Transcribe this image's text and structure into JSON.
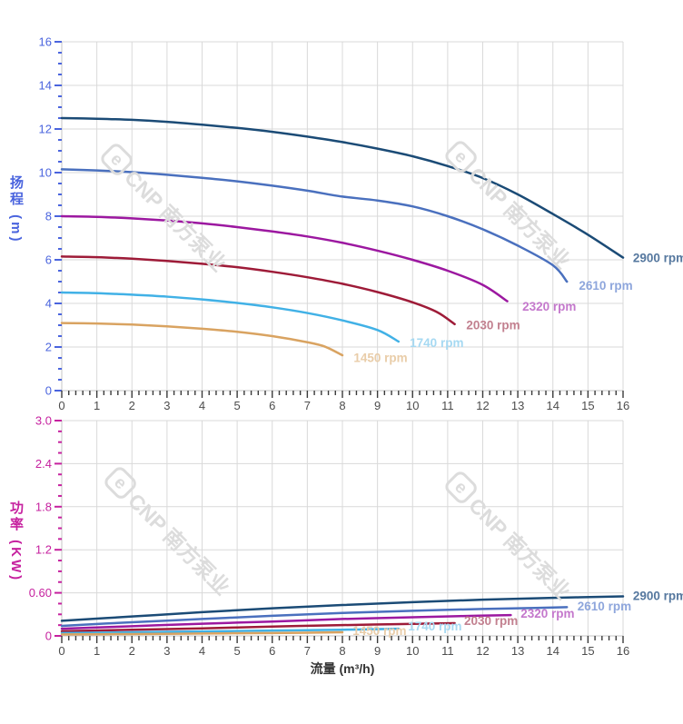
{
  "watermark": {
    "logo_letter": "e",
    "text": "CNP 南方泵业"
  },
  "chart_data": [
    {
      "type": "line",
      "title": "",
      "xlabel": "",
      "ylabel": "扬程 (m)",
      "xlim": [
        0,
        16
      ],
      "ylim": [
        0,
        16
      ],
      "x_major_step": 1,
      "x_minor_step": 0.2,
      "y_major_step": 2,
      "y_minor_step": 0.5,
      "grid": true,
      "axis_color": "#4a64de",
      "x_tick_labels": [
        "0",
        "1",
        "2",
        "3",
        "4",
        "5",
        "6",
        "7",
        "8",
        "9",
        "10",
        "11",
        "12",
        "13",
        "14",
        "15",
        "16"
      ],
      "y_tick_labels": [
        "0",
        "2",
        "4",
        "6",
        "8",
        "10",
        "12",
        "14",
        "16"
      ],
      "series": [
        {
          "name": "2900 rpm",
          "color": "#1b4b76",
          "label_color": "#56789f",
          "label_anchor": [
            16.28,
            6.08
          ],
          "points": [
            [
              0,
              12.5
            ],
            [
              1,
              12.47
            ],
            [
              2,
              12.42
            ],
            [
              3,
              12.33
            ],
            [
              4,
              12.2
            ],
            [
              5,
              12.05
            ],
            [
              6,
              11.87
            ],
            [
              7,
              11.65
            ],
            [
              8,
              11.4
            ],
            [
              9,
              11.1
            ],
            [
              10,
              10.75
            ],
            [
              11,
              10.3
            ],
            [
              12,
              9.75
            ],
            [
              13,
              9.0
            ],
            [
              14,
              8.1
            ],
            [
              15,
              7.15
            ],
            [
              16,
              6.1
            ]
          ]
        },
        {
          "name": "2610 rpm",
          "color": "#4a70be",
          "label_color": "#8ea6dc",
          "label_anchor": [
            14.74,
            4.81
          ],
          "points": [
            [
              0,
              10.15
            ],
            [
              1,
              10.1
            ],
            [
              2,
              10.02
            ],
            [
              3,
              9.9
            ],
            [
              4,
              9.76
            ],
            [
              5,
              9.6
            ],
            [
              6,
              9.4
            ],
            [
              7,
              9.17
            ],
            [
              8,
              8.9
            ],
            [
              9,
              8.72
            ],
            [
              10,
              8.45
            ],
            [
              11,
              8.0
            ],
            [
              12,
              7.4
            ],
            [
              13,
              6.65
            ],
            [
              14,
              5.75
            ],
            [
              14.4,
              5.0
            ]
          ]
        },
        {
          "name": "2320 rpm",
          "color": "#9c18a0",
          "label_color": "#c478cc",
          "label_anchor": [
            13.13,
            3.85
          ],
          "points": [
            [
              0,
              8.0
            ],
            [
              1,
              7.97
            ],
            [
              2,
              7.9
            ],
            [
              3,
              7.8
            ],
            [
              4,
              7.67
            ],
            [
              5,
              7.5
            ],
            [
              6,
              7.3
            ],
            [
              7,
              7.07
            ],
            [
              8,
              6.78
            ],
            [
              9,
              6.42
            ],
            [
              10,
              6.0
            ],
            [
              11,
              5.5
            ],
            [
              12,
              4.85
            ],
            [
              12.7,
              4.1
            ]
          ]
        },
        {
          "name": "2030 rpm",
          "color": "#9e1b38",
          "label_color": "#c2808f",
          "label_anchor": [
            11.53,
            3.0
          ],
          "points": [
            [
              0,
              6.15
            ],
            [
              1,
              6.12
            ],
            [
              2,
              6.05
            ],
            [
              3,
              5.95
            ],
            [
              4,
              5.82
            ],
            [
              5,
              5.66
            ],
            [
              6,
              5.45
            ],
            [
              7,
              5.2
            ],
            [
              8,
              4.9
            ],
            [
              9,
              4.52
            ],
            [
              10,
              4.05
            ],
            [
              10.7,
              3.6
            ],
            [
              11.2,
              3.05
            ]
          ]
        },
        {
          "name": "1740 rpm",
          "color": "#41b1e6",
          "label_color": "#a6d9f2",
          "label_anchor": [
            9.92,
            2.19
          ],
          "points": [
            [
              0,
              4.5
            ],
            [
              1,
              4.47
            ],
            [
              2,
              4.4
            ],
            [
              3,
              4.31
            ],
            [
              4,
              4.18
            ],
            [
              5,
              4.02
            ],
            [
              6,
              3.82
            ],
            [
              7,
              3.56
            ],
            [
              8,
              3.22
            ],
            [
              9,
              2.78
            ],
            [
              9.6,
              2.25
            ]
          ]
        },
        {
          "name": "1450 rpm",
          "color": "#d9a361",
          "label_color": "#e9cda9",
          "label_anchor": [
            8.32,
            1.5
          ],
          "points": [
            [
              0,
              3.1
            ],
            [
              1,
              3.08
            ],
            [
              2,
              3.03
            ],
            [
              3,
              2.95
            ],
            [
              4,
              2.84
            ],
            [
              5,
              2.7
            ],
            [
              6,
              2.5
            ],
            [
              7,
              2.22
            ],
            [
              7.5,
              2.02
            ],
            [
              8,
              1.62
            ]
          ]
        }
      ]
    },
    {
      "type": "line",
      "title": "",
      "xlabel": "流量 (m³/h)",
      "ylabel": "功率 (KW)",
      "xlim": [
        0,
        16
      ],
      "ylim": [
        0,
        3
      ],
      "x_major_step": 1,
      "x_minor_step": 0.2,
      "y_major_step": 0.6,
      "y_minor_step": 0.15,
      "grid": true,
      "axis_color": "#c6219f",
      "x_tick_labels": [
        "0",
        "1",
        "2",
        "3",
        "4",
        "5",
        "6",
        "7",
        "8",
        "9",
        "10",
        "11",
        "12",
        "13",
        "14",
        "15",
        "16"
      ],
      "y_tick_labels": [
        "0",
        "0.60",
        "1.2",
        "1.8",
        "2.4",
        "3.0"
      ],
      "series": [
        {
          "name": "2900 rpm",
          "color": "#1b4b76",
          "label_color": "#56789f",
          "label_anchor": [
            16.28,
            0.557
          ],
          "points": [
            [
              0,
              0.21
            ],
            [
              2,
              0.27
            ],
            [
              4,
              0.33
            ],
            [
              6,
              0.385
            ],
            [
              8,
              0.43
            ],
            [
              10,
              0.47
            ],
            [
              12,
              0.505
            ],
            [
              14,
              0.53
            ],
            [
              16,
              0.55
            ]
          ]
        },
        {
          "name": "2610 rpm",
          "color": "#4a70be",
          "label_color": "#8ea6dc",
          "label_anchor": [
            14.7,
            0.41
          ],
          "points": [
            [
              0,
              0.14
            ],
            [
              2,
              0.19
            ],
            [
              4,
              0.235
            ],
            [
              6,
              0.28
            ],
            [
              8,
              0.32
            ],
            [
              10,
              0.35
            ],
            [
              12,
              0.375
            ],
            [
              13.5,
              0.39
            ],
            [
              14.4,
              0.4
            ]
          ]
        },
        {
          "name": "2320 rpm",
          "color": "#9c18a0",
          "label_color": "#c478cc",
          "label_anchor": [
            13.08,
            0.31
          ],
          "points": [
            [
              0,
              0.1
            ],
            [
              2,
              0.135
            ],
            [
              4,
              0.17
            ],
            [
              6,
              0.2
            ],
            [
              8,
              0.235
            ],
            [
              10,
              0.26
            ],
            [
              11.5,
              0.277
            ],
            [
              12.8,
              0.29
            ]
          ]
        },
        {
          "name": "2030 rpm",
          "color": "#9e1b38",
          "label_color": "#c2808f",
          "label_anchor": [
            11.47,
            0.21
          ],
          "points": [
            [
              0,
              0.065
            ],
            [
              2,
              0.085
            ],
            [
              4,
              0.105
            ],
            [
              6,
              0.13
            ],
            [
              8,
              0.15
            ],
            [
              9.5,
              0.163
            ],
            [
              11.2,
              0.178
            ]
          ]
        },
        {
          "name": "1740 rpm",
          "color": "#41b1e6",
          "label_color": "#a6d9f2",
          "label_anchor": [
            9.87,
            0.133
          ],
          "points": [
            [
              0,
              0.04
            ],
            [
              2,
              0.05
            ],
            [
              4,
              0.062
            ],
            [
              6,
              0.074
            ],
            [
              8,
              0.086
            ],
            [
              9.6,
              0.1
            ]
          ]
        },
        {
          "name": "1450 rpm",
          "color": "#d9a361",
          "label_color": "#e9cda9",
          "label_anchor": [
            8.29,
            0.07
          ],
          "points": [
            [
              0,
              0.02
            ],
            [
              2,
              0.026
            ],
            [
              4,
              0.033
            ],
            [
              6,
              0.04
            ],
            [
              8,
              0.05
            ]
          ]
        }
      ]
    }
  ]
}
